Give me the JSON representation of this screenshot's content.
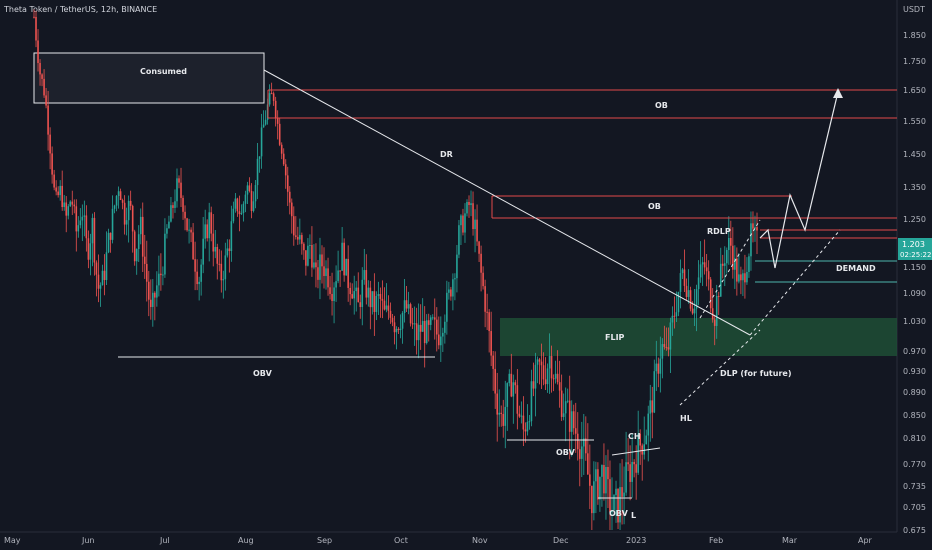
{
  "chart_data": {
    "type": "candlestick",
    "title": "Theta Token / TetherUS, 12h, BINANCE",
    "currency": "USDT",
    "y_ticks": [
      1.85,
      1.75,
      1.65,
      1.55,
      1.45,
      1.35,
      1.25,
      1.15,
      1.09,
      1.03,
      0.97,
      0.93,
      0.89,
      0.85,
      0.81,
      0.77,
      0.735,
      0.705,
      0.675
    ],
    "y_tick_labels": [
      "1.850",
      "1.750",
      "1.650",
      "1.550",
      "1.450",
      "1.350",
      "1.250",
      "1.150",
      "1.090",
      "1.030",
      "0.970",
      "0.930",
      "0.890",
      "0.850",
      "0.810",
      "0.770",
      "0.735",
      "0.705",
      "0.675"
    ],
    "x_ticks": [
      "May",
      "Jun",
      "Jul",
      "Aug",
      "Sep",
      "Oct",
      "Nov",
      "Dec",
      "2023",
      "Feb",
      "Mar",
      "Apr"
    ],
    "last_price": "1.203",
    "countdown": "02:25:22",
    "colors": {
      "background": "#131722",
      "up": "#26a69a",
      "down": "#ef5350",
      "zone_red": "#e04a4a",
      "flip_zone": "#1f4d35",
      "demand_line": "#4db6ac",
      "drawing": "#e6e8ec",
      "price_tag": "#26a69a"
    },
    "annotations": {
      "consumed": "Consumed",
      "ob_top": "OB",
      "dr": "DR",
      "ob_mid": "OB",
      "rdlp": "RDLP",
      "demand": "DEMAND",
      "flip": "FLIP",
      "obv_left": "OBV",
      "dlp": "DLP (for future)",
      "hl": "HL",
      "ch": "CH",
      "obv_dec": "OBV",
      "obv_bottom": "OBV",
      "low": "L"
    },
    "price_path": [
      [
        0,
        1.92
      ],
      [
        2,
        1.72
      ],
      [
        4,
        1.64
      ],
      [
        6,
        1.48
      ],
      [
        8,
        1.3
      ],
      [
        10,
        1.34
      ],
      [
        12,
        1.25
      ],
      [
        14,
        1.32
      ],
      [
        16,
        1.22
      ],
      [
        18,
        1.28
      ],
      [
        20,
        1.18
      ],
      [
        22,
        1.24
      ],
      [
        24,
        1.1
      ],
      [
        26,
        1.12
      ],
      [
        28,
        1.2
      ],
      [
        30,
        1.28
      ],
      [
        32,
        1.36
      ],
      [
        34,
        1.26
      ],
      [
        36,
        1.3
      ],
      [
        38,
        1.18
      ],
      [
        40,
        1.24
      ],
      [
        42,
        1.14
      ],
      [
        44,
        1.04
      ],
      [
        46,
        1.1
      ],
      [
        48,
        1.14
      ],
      [
        50,
        1.22
      ],
      [
        52,
        1.28
      ],
      [
        54,
        1.36
      ],
      [
        56,
        1.3
      ],
      [
        58,
        1.22
      ],
      [
        60,
        1.18
      ],
      [
        62,
        1.12
      ],
      [
        64,
        1.2
      ],
      [
        66,
        1.26
      ],
      [
        68,
        1.18
      ],
      [
        70,
        1.12
      ],
      [
        72,
        1.16
      ],
      [
        74,
        1.22
      ],
      [
        76,
        1.3
      ],
      [
        78,
        1.26
      ],
      [
        80,
        1.36
      ],
      [
        82,
        1.3
      ],
      [
        84,
        1.42
      ],
      [
        86,
        1.52
      ],
      [
        88,
        1.6
      ],
      [
        90,
        1.64
      ],
      [
        92,
        1.52
      ],
      [
        94,
        1.44
      ],
      [
        96,
        1.3
      ],
      [
        98,
        1.22
      ],
      [
        100,
        1.2
      ],
      [
        102,
        1.16
      ],
      [
        104,
        1.2
      ],
      [
        106,
        1.12
      ],
      [
        108,
        1.16
      ],
      [
        110,
        1.14
      ],
      [
        112,
        1.1
      ],
      [
        114,
        1.14
      ],
      [
        116,
        1.18
      ],
      [
        118,
        1.12
      ],
      [
        120,
        1.1
      ],
      [
        122,
        1.06
      ],
      [
        124,
        1.12
      ],
      [
        126,
        1.08
      ],
      [
        128,
        1.06
      ],
      [
        130,
        1.08
      ],
      [
        132,
        1.04
      ],
      [
        134,
        1.06
      ],
      [
        136,
        1.02
      ],
      [
        138,
        1.04
      ],
      [
        140,
        1.06
      ],
      [
        142,
        1.02
      ],
      [
        144,
        1.0
      ],
      [
        146,
        1.02
      ],
      [
        148,
        1.0
      ],
      [
        150,
        1.02
      ],
      [
        152,
        1.0
      ],
      [
        154,
        1.04
      ],
      [
        156,
        1.08
      ],
      [
        158,
        1.14
      ],
      [
        160,
        1.22
      ],
      [
        162,
        1.26
      ],
      [
        164,
        1.3
      ],
      [
        166,
        1.22
      ],
      [
        168,
        1.14
      ],
      [
        170,
        1.06
      ],
      [
        172,
        0.96
      ],
      [
        174,
        0.88
      ],
      [
        176,
        0.84
      ],
      [
        178,
        0.88
      ],
      [
        180,
        0.92
      ],
      [
        182,
        0.86
      ],
      [
        184,
        0.82
      ],
      [
        186,
        0.86
      ],
      [
        188,
        0.9
      ],
      [
        190,
        0.94
      ],
      [
        192,
        0.92
      ],
      [
        194,
        0.96
      ],
      [
        196,
        0.92
      ],
      [
        198,
        0.88
      ],
      [
        200,
        0.86
      ],
      [
        202,
        0.84
      ],
      [
        204,
        0.82
      ],
      [
        206,
        0.8
      ],
      [
        208,
        0.76
      ],
      [
        210,
        0.72
      ],
      [
        212,
        0.74
      ],
      [
        214,
        0.76
      ],
      [
        216,
        0.72
      ],
      [
        218,
        0.7
      ],
      [
        220,
        0.71
      ],
      [
        222,
        0.74
      ],
      [
        224,
        0.76
      ],
      [
        226,
        0.78
      ],
      [
        228,
        0.8
      ],
      [
        230,
        0.82
      ],
      [
        232,
        0.86
      ],
      [
        234,
        0.92
      ],
      [
        236,
        0.98
      ],
      [
        238,
        0.96
      ],
      [
        240,
        1.02
      ],
      [
        242,
        1.08
      ],
      [
        244,
        1.14
      ],
      [
        246,
        1.1
      ],
      [
        248,
        1.06
      ],
      [
        250,
        1.12
      ],
      [
        252,
        1.16
      ],
      [
        254,
        1.1
      ],
      [
        256,
        1.04
      ],
      [
        258,
        1.12
      ],
      [
        260,
        1.18
      ],
      [
        262,
        1.2
      ],
      [
        264,
        1.14
      ],
      [
        266,
        1.1
      ],
      [
        268,
        1.16
      ],
      [
        270,
        1.22
      ],
      [
        272,
        1.2
      ]
    ]
  }
}
